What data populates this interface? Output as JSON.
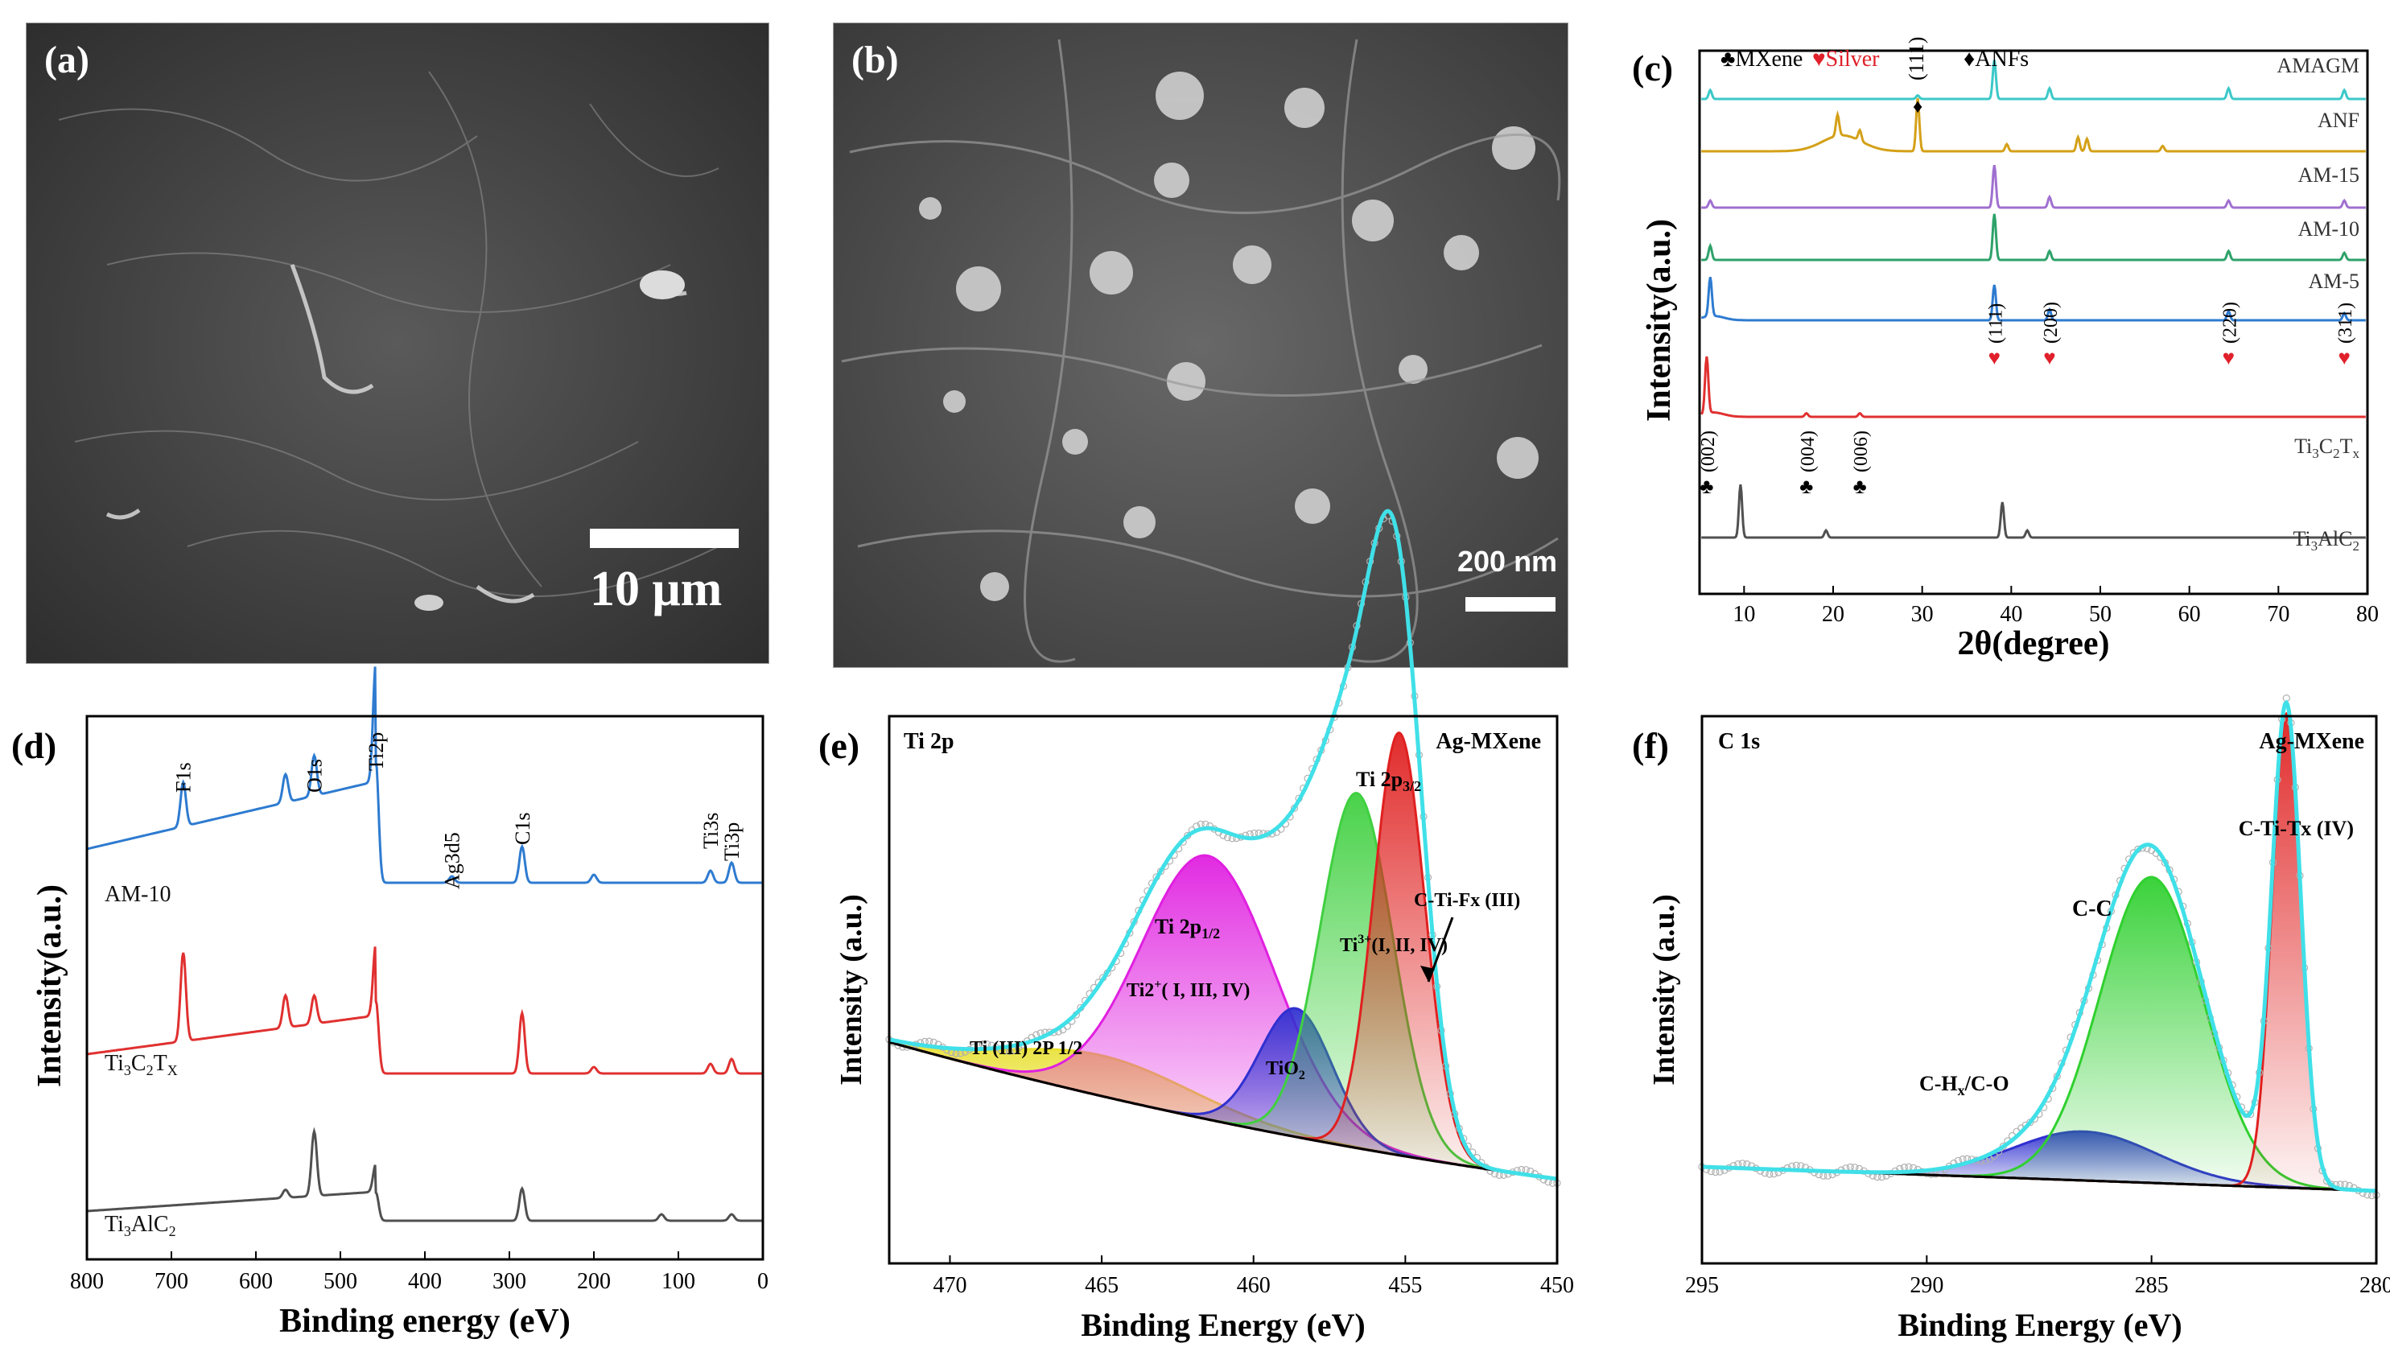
{
  "panel_a": {
    "label": "(a)",
    "scale": "10 μm"
  },
  "panel_b": {
    "label": "(b)",
    "scale": "200 nm"
  },
  "colors": {
    "amagm": "#3cc8c8",
    "anf": "#d4a017",
    "am15": "#a070d0",
    "am10": "#2ea26a",
    "am5": "#2e7bd0",
    "ti3c2tx": "#e03030",
    "ti3alc2": "#505050",
    "heart": "#e0202a"
  },
  "chart_data": [
    {
      "id": "c",
      "type": "line",
      "label": "(c)",
      "xlabel": "2θ(degree)",
      "ylabel": "Intensity(a.u.)",
      "xlim": [
        5,
        80
      ],
      "xticks": [
        "10",
        "20",
        "30",
        "40",
        "50",
        "60",
        "70",
        "80"
      ],
      "legend": {
        "mxene": "♣MXene",
        "silver": "♥Silver",
        "anfs": "♦ANFs",
        "anf_peak": "(111)"
      },
      "series": [
        {
          "name": "AMAGM",
          "color": "#3cc8c8",
          "base": 1,
          "peaks": [
            [
              6.2,
              0.5
            ],
            [
              29.5,
              0.2
            ],
            [
              38.1,
              2.2
            ],
            [
              44.3,
              0.6
            ],
            [
              64.4,
              0.6
            ],
            [
              77.4,
              0.5
            ]
          ]
        },
        {
          "name": "ANF",
          "color": "#d4a017",
          "base": 0,
          "peaks": [
            [
              20.5,
              1.2
            ],
            [
              23,
              0.6
            ],
            [
              29.5,
              3.0
            ],
            [
              39.5,
              0.4
            ],
            [
              47.5,
              0.8
            ],
            [
              48.5,
              0.7
            ],
            [
              57,
              0.3
            ]
          ]
        },
        {
          "name": "AM-15",
          "color": "#a070d0",
          "base": 0,
          "peaks": [
            [
              6.2,
              0.4
            ],
            [
              38.1,
              2.4
            ],
            [
              44.3,
              0.6
            ],
            [
              64.4,
              0.4
            ],
            [
              77.4,
              0.4
            ]
          ]
        },
        {
          "name": "AM-10",
          "color": "#2ea26a",
          "base": 0,
          "peaks": [
            [
              6.2,
              0.8
            ],
            [
              38.1,
              2.6
            ],
            [
              44.3,
              0.5
            ],
            [
              64.4,
              0.5
            ],
            [
              77.4,
              0.4
            ]
          ]
        },
        {
          "name": "AM-5",
          "color": "#2e7bd0",
          "base": 0,
          "peaks": [
            [
              6.2,
              2.2
            ],
            [
              38.1,
              2.0
            ],
            [
              44.3,
              0.6
            ],
            [
              64.4,
              0.5
            ],
            [
              77.4,
              0.4
            ]
          ]
        },
        {
          "name": "Ti3C2Tx",
          "sub_label": [
            "Ti",
            "3",
            "C",
            "2",
            "T",
            "x"
          ],
          "color": "#e03030",
          "base": 0,
          "peaks": [
            [
              5.8,
              3.2
            ],
            [
              17,
              0.2
            ],
            [
              23,
              0.2
            ]
          ]
        },
        {
          "name": "Ti3AlC2",
          "sub_label": [
            "Ti",
            "3",
            "AlC",
            "2"
          ],
          "color": "#505050",
          "base": 0,
          "peaks": [
            [
              9.6,
              3.0
            ],
            [
              19.2,
              0.4
            ],
            [
              39,
              2.0
            ],
            [
              41.8,
              0.4
            ]
          ]
        }
      ],
      "annotations": [
        {
          "text": "(111)",
          "x": 38.1,
          "symbol": "heart"
        },
        {
          "text": "(200)",
          "x": 44.3,
          "symbol": "heart"
        },
        {
          "text": "(220)",
          "x": 64.4,
          "symbol": "heart"
        },
        {
          "text": "(311)",
          "x": 77.4,
          "symbol": "heart"
        },
        {
          "text": "(002)",
          "x": 5.8,
          "symbol": "club"
        },
        {
          "text": "(004)",
          "x": 17,
          "symbol": "club"
        },
        {
          "text": "(006)",
          "x": 23,
          "symbol": "club"
        }
      ]
    },
    {
      "id": "d",
      "type": "line",
      "label": "(d)",
      "xlabel": "Binding energy (eV)",
      "ylabel": "Intensity(a.u.)",
      "xlim": [
        800,
        0
      ],
      "xticks": [
        "800",
        "700",
        "600",
        "500",
        "400",
        "300",
        "200",
        "100",
        "0"
      ],
      "series": [
        {
          "name": "AM-10",
          "color": "#2e7bd0"
        },
        {
          "name": "Ti3C2TX",
          "sub_label": [
            "Ti",
            "3",
            "C",
            "2",
            "T",
            "X"
          ],
          "color": "#e03030"
        },
        {
          "name": "Ti3AlC2",
          "sub_label": [
            "Ti",
            "3",
            "AlC",
            "2"
          ],
          "color": "#505050"
        }
      ],
      "peak_labels": [
        {
          "text": "F1s",
          "x": 686
        },
        {
          "text": "O1s",
          "x": 531
        },
        {
          "text": "Ti2p",
          "x": 458
        },
        {
          "text": "Ag3d5",
          "x": 368
        },
        {
          "text": "C1s",
          "x": 285
        },
        {
          "text": "Ti3s",
          "x": 62
        },
        {
          "text": "Ti3p",
          "x": 37
        }
      ]
    },
    {
      "id": "e",
      "type": "area",
      "label": "(e)",
      "corner_left": "Ti 2p",
      "corner_right": "Ag-MXene",
      "xlabel": "Binding Energy (eV)",
      "ylabel": "Intensity (a.u.)",
      "xlim": [
        472,
        450
      ],
      "xticks": [
        "470",
        "465",
        "460",
        "455",
        "450"
      ],
      "components": [
        {
          "name": "Ti (III) 2P 1/2",
          "center": 465.0,
          "height": 0.12,
          "width": 3.0,
          "color": "#e8e030"
        },
        {
          "name": "Ti2+( I, III, IV)",
          "center": 461.5,
          "height": 0.78,
          "width": 2.2,
          "color": "#e020e0"
        },
        {
          "name": "TiO2",
          "center": 458.6,
          "height": 0.38,
          "width": 1.2,
          "color": "#3030d0"
        },
        {
          "name": "Ti3+(I, II, IV)",
          "center": 456.6,
          "height": 1.05,
          "width": 1.2,
          "color": "#40d040"
        },
        {
          "name": "C-Ti-Fx (III)",
          "center": 455.2,
          "height": 1.25,
          "width": 0.85,
          "color": "#e02020"
        }
      ],
      "labels": {
        "ti2p12": "Ti 2p1/2",
        "ti2p32": "Ti 2p3/2",
        "ti2plus": "Ti2+( I, III, IV)",
        "ti3plus": "Ti3+(I, II, IV)",
        "tio2": "TiO2",
        "ctifx": "C-Ti-Fx (III)",
        "tiiii": "Ti (III) 2P 1/2"
      }
    },
    {
      "id": "f",
      "type": "area",
      "label": "(f)",
      "corner_left": "C 1s",
      "corner_right": "Ag-MXene",
      "xlabel": "Binding Energy (eV)",
      "ylabel": "Intensity (a.u.)",
      "xlim": [
        295,
        280
      ],
      "xticks": [
        "295",
        "290",
        "285",
        "280"
      ],
      "components": [
        {
          "name": "C-Hx/C-O",
          "center": 286.5,
          "height": 0.16,
          "width": 1.6,
          "color": "#3030d0"
        },
        {
          "name": "C-C",
          "center": 285.0,
          "height": 1.0,
          "width": 1.15,
          "color": "#30d030"
        },
        {
          "name": "C-Ti-Tx (IV)",
          "center": 282.0,
          "height": 1.55,
          "width": 0.32,
          "color": "#e02020"
        }
      ],
      "labels": {
        "chx": "C-Hx/C-O",
        "cc": "C-C",
        "ctitx": "C-Ti-Tx (IV)"
      }
    }
  ]
}
